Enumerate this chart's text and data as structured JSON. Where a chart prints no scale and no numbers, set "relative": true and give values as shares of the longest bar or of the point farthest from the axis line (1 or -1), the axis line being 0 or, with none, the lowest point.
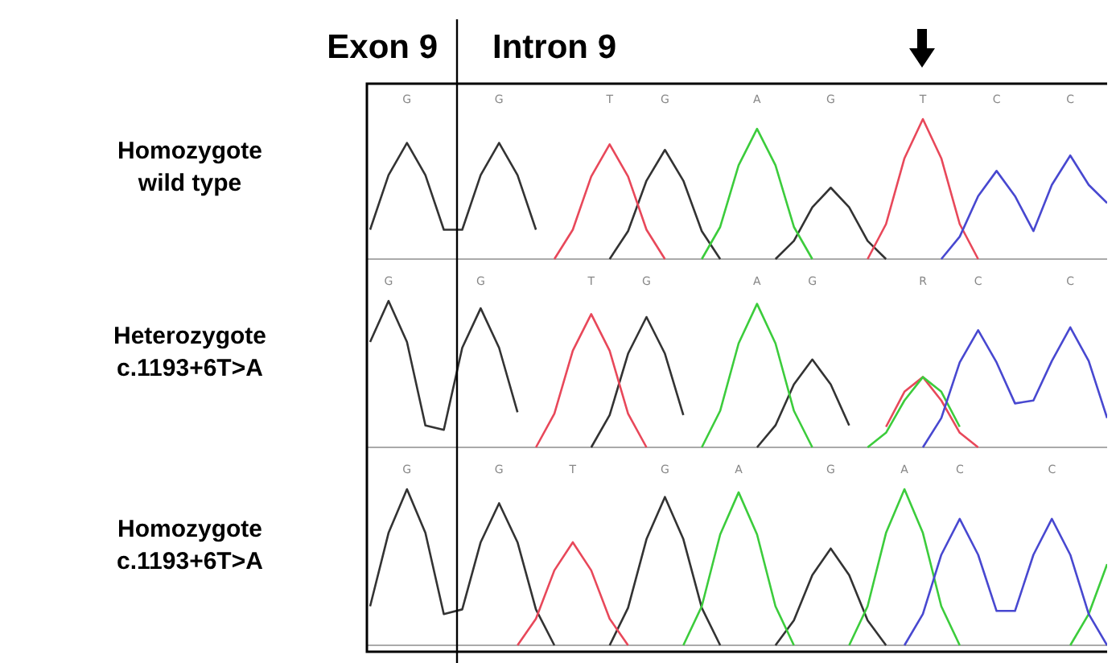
{
  "chart_data": [
    {
      "type": "line",
      "title": "Homozygote\nwild type",
      "relative": true,
      "marker": "none",
      "line_style": "solid",
      "annotations": [
        "Exon 9",
        "Intron 9"
      ],
      "categories": [
        null,
        null,
        "G",
        null,
        null,
        null,
        null,
        "G",
        null,
        null,
        null,
        null,
        null,
        "T",
        null,
        null,
        "G",
        null,
        null,
        null,
        null,
        "A",
        null,
        null,
        null,
        "G",
        null,
        null,
        null,
        null,
        "T",
        null,
        null,
        null,
        "C",
        null,
        null,
        null,
        "C",
        null,
        null
      ],
      "series": [
        {
          "color": "#333333",
          "values": [
            0.21,
            0.6,
            0.83,
            0.6,
            0.21,
            0.21,
            0.6,
            0.83,
            0.6,
            0.21,
            null,
            null,
            null,
            0,
            0.2,
            0.56,
            0.78,
            0.56,
            0.2,
            0,
            null,
            null,
            0,
            0.13,
            0.37,
            0.51,
            0.37,
            0.13,
            0,
            null,
            null,
            null,
            null,
            null,
            null,
            null,
            null,
            null,
            null,
            null,
            null
          ]
        },
        {
          "color": "#e8485a",
          "values": [
            null,
            null,
            null,
            null,
            null,
            null,
            null,
            null,
            null,
            null,
            0,
            0.21,
            0.59,
            0.82,
            0.59,
            0.21,
            0,
            null,
            null,
            null,
            null,
            null,
            null,
            null,
            null,
            null,
            null,
            0,
            0.25,
            0.72,
            1,
            0.72,
            0.25,
            0,
            null,
            null,
            null,
            null,
            null,
            null,
            null
          ]
        },
        {
          "color": "#3ccc3c",
          "values": [
            null,
            null,
            null,
            null,
            null,
            null,
            null,
            null,
            null,
            null,
            null,
            null,
            null,
            null,
            null,
            null,
            null,
            null,
            0,
            0.23,
            0.67,
            0.93,
            0.67,
            0.23,
            0,
            null,
            null,
            null,
            null,
            null,
            null,
            null,
            null,
            null,
            null,
            null,
            null,
            null,
            null,
            null,
            null
          ]
        },
        {
          "color": "#4848d0",
          "values": [
            null,
            null,
            null,
            null,
            null,
            null,
            null,
            null,
            null,
            null,
            null,
            null,
            null,
            null,
            null,
            null,
            null,
            null,
            null,
            null,
            null,
            null,
            null,
            null,
            null,
            null,
            null,
            null,
            null,
            null,
            null,
            0,
            0.16,
            0.45,
            0.63,
            0.45,
            0.2,
            0.53,
            0.74,
            0.53,
            0.4
          ]
        }
      ]
    },
    {
      "type": "line",
      "title": "Heterozygote\nc.1193+6T>A",
      "relative": true,
      "marker": "none",
      "line_style": "solid",
      "categories": [
        null,
        "G",
        null,
        null,
        null,
        null,
        "G",
        null,
        null,
        null,
        null,
        null,
        "T",
        null,
        null,
        "G",
        null,
        null,
        null,
        null,
        null,
        "A",
        null,
        null,
        "G",
        null,
        null,
        null,
        null,
        null,
        "R",
        null,
        null,
        "C",
        null,
        null,
        null,
        null,
        "C",
        null,
        null
      ],
      "series": [
        {
          "color": "#333333",
          "values": [
            0.72,
            1,
            0.72,
            0.15,
            0.12,
            0.68,
            0.95,
            0.68,
            0.24,
            null,
            null,
            null,
            0,
            0.22,
            0.64,
            0.89,
            0.64,
            0.22,
            null,
            null,
            null,
            0,
            0.15,
            0.43,
            0.6,
            0.43,
            0.15,
            null,
            null,
            null,
            null,
            null,
            null,
            null,
            null,
            null,
            null,
            null,
            null,
            null,
            null
          ]
        },
        {
          "color": "#e8485a",
          "values": [
            null,
            null,
            null,
            null,
            null,
            null,
            null,
            null,
            null,
            0,
            0.23,
            0.66,
            0.91,
            0.66,
            0.23,
            0,
            null,
            null,
            null,
            null,
            null,
            null,
            null,
            null,
            null,
            null,
            null,
            null,
            0.14,
            0.38,
            0.48,
            0.32,
            0.1,
            0,
            null,
            null,
            null,
            null,
            null,
            null,
            null
          ]
        },
        {
          "color": "#3ccc3c",
          "values": [
            null,
            null,
            null,
            null,
            null,
            null,
            null,
            null,
            null,
            null,
            null,
            null,
            null,
            null,
            null,
            null,
            null,
            null,
            0,
            0.25,
            0.71,
            0.98,
            0.71,
            0.25,
            0,
            null,
            null,
            0,
            0.1,
            0.32,
            0.48,
            0.38,
            0.14,
            null,
            null,
            null,
            null,
            null,
            null,
            null,
            null
          ]
        },
        {
          "color": "#4848d0",
          "values": [
            null,
            null,
            null,
            null,
            null,
            null,
            null,
            null,
            null,
            null,
            null,
            null,
            null,
            null,
            null,
            null,
            null,
            null,
            null,
            null,
            null,
            null,
            null,
            null,
            null,
            null,
            null,
            null,
            null,
            null,
            0,
            0.2,
            0.58,
            0.8,
            0.58,
            0.3,
            0.32,
            0.59,
            0.82,
            0.59,
            0.2
          ]
        }
      ]
    },
    {
      "type": "line",
      "title": "Homozygote\nc.1193+6T>A",
      "relative": true,
      "marker": "none",
      "line_style": "solid",
      "categories": [
        null,
        null,
        "G",
        null,
        null,
        null,
        null,
        "G",
        null,
        null,
        null,
        "T",
        null,
        null,
        null,
        null,
        "G",
        null,
        null,
        null,
        "A",
        null,
        null,
        null,
        null,
        "G",
        null,
        null,
        null,
        "A",
        null,
        null,
        "C",
        null,
        null,
        null,
        null,
        "C",
        null,
        null,
        null
      ],
      "series": [
        {
          "color": "#333333",
          "values": [
            0.25,
            0.72,
            1,
            0.72,
            0.2,
            0.23,
            0.66,
            0.91,
            0.66,
            0.23,
            0,
            null,
            null,
            0,
            0.24,
            0.68,
            0.95,
            0.68,
            0.24,
            0,
            null,
            null,
            0,
            0.16,
            0.45,
            0.62,
            0.45,
            0.16,
            0,
            null,
            null,
            null,
            null,
            null,
            null,
            null,
            null,
            null,
            null,
            null,
            null
          ]
        },
        {
          "color": "#e8485a",
          "values": [
            null,
            null,
            null,
            null,
            null,
            null,
            null,
            null,
            0,
            0.17,
            0.48,
            0.66,
            0.48,
            0.17,
            0,
            null,
            null,
            null,
            null,
            null,
            null,
            null,
            null,
            null,
            null,
            null,
            null,
            null,
            null,
            null,
            null,
            null,
            null,
            null,
            null,
            null,
            null,
            null,
            null,
            null,
            null
          ]
        },
        {
          "color": "#3ccc3c",
          "values": [
            null,
            null,
            null,
            null,
            null,
            null,
            null,
            null,
            null,
            null,
            null,
            null,
            null,
            null,
            null,
            null,
            null,
            0,
            0.25,
            0.71,
            0.98,
            0.71,
            0.25,
            0,
            null,
            null,
            0,
            0.25,
            0.72,
            1,
            0.72,
            0.25,
            0,
            null,
            null,
            null,
            null,
            null,
            0,
            0.2,
            0.52
          ]
        },
        {
          "color": "#4848d0",
          "values": [
            null,
            null,
            null,
            null,
            null,
            null,
            null,
            null,
            null,
            null,
            null,
            null,
            null,
            null,
            null,
            null,
            null,
            null,
            null,
            null,
            null,
            null,
            null,
            null,
            null,
            null,
            null,
            null,
            null,
            0,
            0.2,
            0.58,
            0.81,
            0.58,
            0.22,
            0.22,
            0.58,
            0.81,
            0.58,
            0.2,
            0
          ]
        }
      ]
    }
  ]
}
